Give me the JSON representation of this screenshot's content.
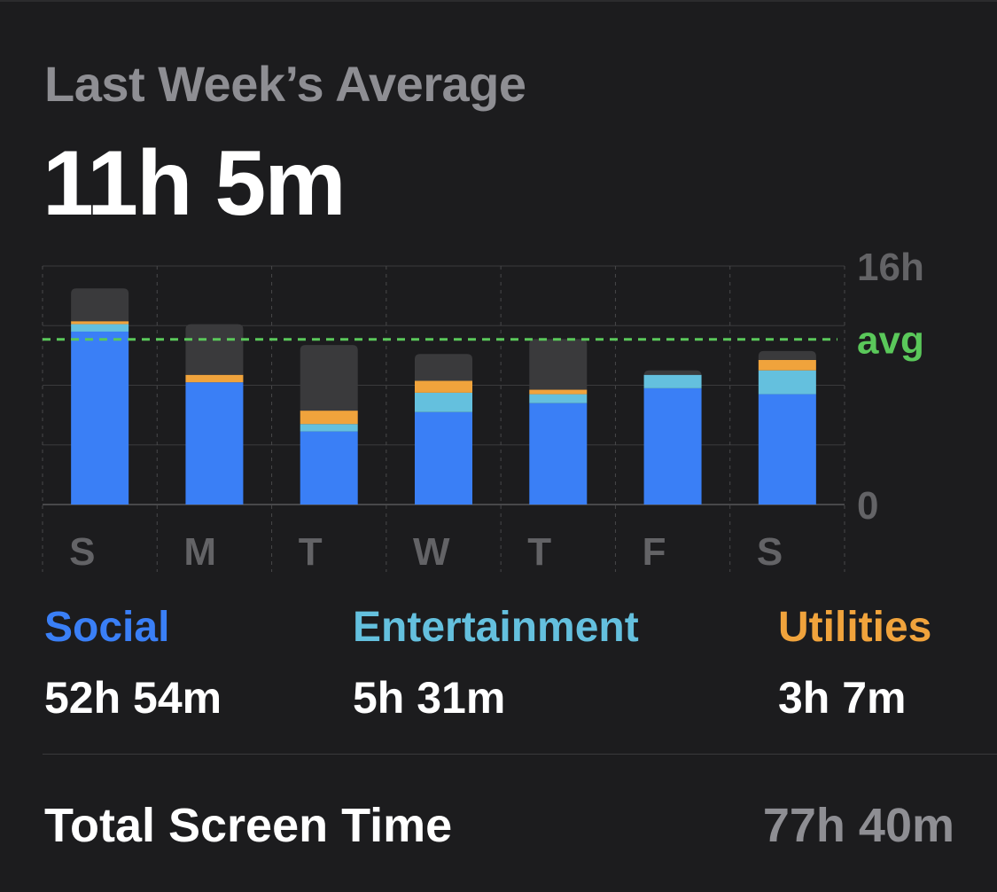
{
  "header": {
    "subtitle": "Last Week’s Average",
    "average": "11h 5m"
  },
  "colors": {
    "social": "#3a7ff6",
    "entertainment": "#64c0de",
    "utilities": "#f0a33c",
    "other": "#3a3a3c",
    "avg": "#5ac85a",
    "axis_text": "#636366",
    "background": "#1c1c1e"
  },
  "chart_data": {
    "type": "bar",
    "stacked": true,
    "categories": [
      "S",
      "M",
      "T",
      "W",
      "T",
      "F",
      "S"
    ],
    "y_tick_labels": [
      "16h",
      "0"
    ],
    "ylim": [
      0,
      16
    ],
    "avg_value": 11.08,
    "avg_label": "avg",
    "grid": true,
    "series": [
      {
        "name": "Social",
        "color": "#3a7ff6",
        "values": [
          11.6,
          8.2,
          4.9,
          6.2,
          6.8,
          7.8,
          7.4
        ]
      },
      {
        "name": "Entertainment",
        "color": "#64c0de",
        "values": [
          0.5,
          0.0,
          0.5,
          1.3,
          0.6,
          0.9,
          1.6
        ]
      },
      {
        "name": "Utilities",
        "color": "#f0a33c",
        "values": [
          0.2,
          0.5,
          0.9,
          0.8,
          0.3,
          0.0,
          0.7
        ]
      },
      {
        "color": "#3a3a3c",
        "values": [
          2.2,
          3.4,
          4.4,
          1.8,
          3.4,
          0.3,
          0.6
        ]
      }
    ]
  },
  "categories": [
    {
      "label": "Social",
      "value": "52h 54m",
      "color": "#3a7ff6"
    },
    {
      "label": "Entertainment",
      "value": "5h 31m",
      "color": "#64c0de"
    },
    {
      "label": "Utilities",
      "value": "3h 7m",
      "color": "#f0a33c"
    }
  ],
  "total": {
    "label": "Total Screen Time",
    "value": "77h 40m"
  }
}
